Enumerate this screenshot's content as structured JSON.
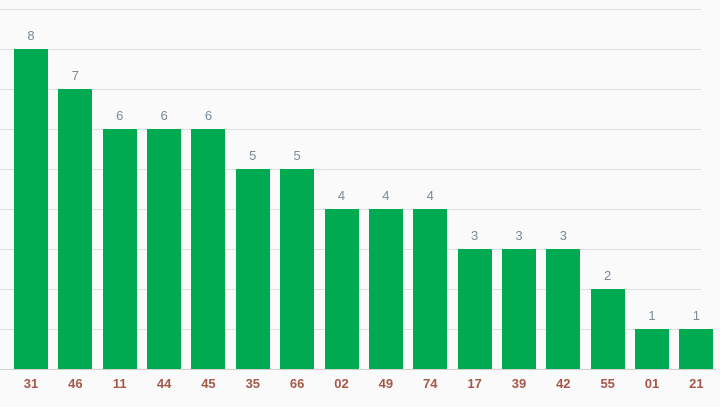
{
  "chart_data": {
    "type": "bar",
    "title": "",
    "categories": [
      "31",
      "46",
      "11",
      "44",
      "45",
      "35",
      "66",
      "02",
      "49",
      "74",
      "17",
      "39",
      "42",
      "55",
      "01",
      "21"
    ],
    "values": [
      8,
      7,
      6,
      6,
      6,
      5,
      5,
      4,
      4,
      4,
      3,
      3,
      3,
      2,
      1,
      1
    ],
    "xlabel": "",
    "ylabel": "",
    "ylim": [
      0,
      9
    ],
    "grid": true,
    "legend": "none",
    "value_labels_shown": true,
    "colors": {
      "bar": "#00AA50",
      "value_label": "#7B8A99",
      "x_axis_label": "#A6584A",
      "gridline": "#E0E0E0",
      "baseline": "#D0D0D0",
      "background": "#FAFAFA"
    }
  }
}
